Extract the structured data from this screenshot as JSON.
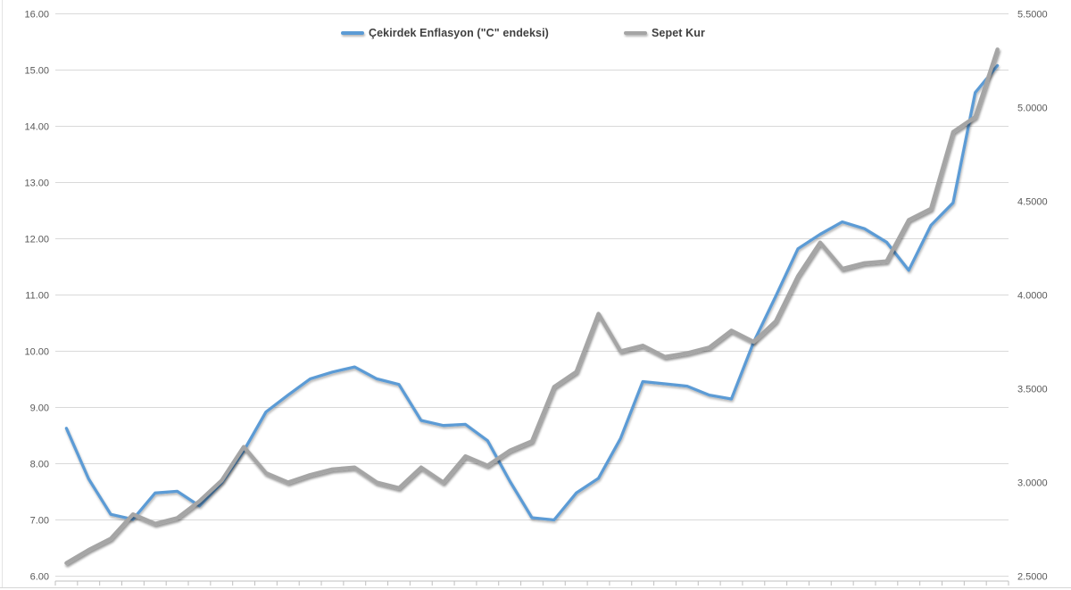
{
  "chart_data": {
    "type": "line",
    "title": "",
    "legend_position": "top",
    "grid": "horizontal",
    "x_axis": {
      "labels_visible": false,
      "points_count": 43,
      "tick_marks": 44
    },
    "left_axis": {
      "range": [
        6,
        16
      ],
      "ticks": [
        "16.00",
        "15.00",
        "14.00",
        "13.00",
        "12.00",
        "11.00",
        "10.00",
        "9.00",
        "8.00",
        "7.00",
        "6.00"
      ]
    },
    "right_axis": {
      "range": [
        2.5,
        5.5
      ],
      "ticks": [
        "5.5000",
        "5.0000",
        "4.5000",
        "4.0000",
        "3.5000",
        "3.0000",
        "2.5000"
      ]
    },
    "series": [
      {
        "name": "Çekirdek Enflasyon (\"C\" endeksi)",
        "color": "#5B9BD5",
        "axis": "left",
        "line_width": 3.3,
        "values": [
          8.63,
          7.73,
          7.1,
          7.01,
          7.48,
          7.51,
          7.25,
          7.66,
          8.23,
          8.92,
          9.22,
          9.51,
          9.63,
          9.72,
          9.51,
          9.41,
          8.77,
          8.68,
          8.7,
          8.41,
          7.69,
          7.04,
          7.0,
          7.48,
          7.74,
          8.45,
          9.46,
          9.42,
          9.38,
          9.22,
          9.15,
          10.16,
          10.98,
          11.82,
          12.08,
          12.3,
          12.18,
          11.94,
          11.44,
          12.24,
          12.64,
          14.6,
          15.08
        ]
      },
      {
        "name": "Sepet Kur",
        "color": "#A5A5A5",
        "axis": "right",
        "line_width": 4.4,
        "values": [
          2.57,
          2.64,
          2.7,
          2.83,
          2.78,
          2.81,
          2.9,
          3.01,
          3.19,
          3.05,
          3.0,
          3.04,
          3.07,
          3.08,
          3.0,
          2.97,
          3.08,
          3.0,
          3.14,
          3.09,
          3.17,
          3.22,
          3.51,
          3.59,
          3.9,
          3.7,
          3.73,
          3.67,
          3.69,
          3.72,
          3.81,
          3.75,
          3.86,
          4.1,
          4.28,
          4.14,
          4.17,
          4.18,
          4.4,
          4.46,
          4.87,
          4.95,
          5.31
        ]
      }
    ],
    "colors": {
      "gridline": "#d9d9d9",
      "axis_line": "#bfbfbf",
      "tick": "#bfbfbf",
      "axis_text": "#595959",
      "legend_text": "#404040",
      "background": "#ffffff"
    }
  }
}
